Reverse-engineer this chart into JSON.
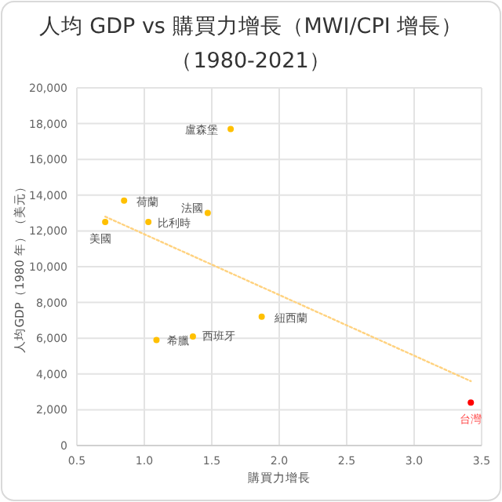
{
  "chart_data": {
    "type": "scatter",
    "title": "人均 GDP vs 購買力增長（MWI/CPI 增長）",
    "subtitle": "（1980-2021）",
    "xlabel": "購買力增長",
    "ylabel": "人均GDP（1980 年）（美元）",
    "xlim": [
      0.5,
      3.5
    ],
    "xticks": [
      {
        "value": 0.5,
        "label": "0.5"
      },
      {
        "value": 1,
        "label": "1.0"
      },
      {
        "value": 1.5,
        "label": "1.5"
      },
      {
        "value": 2,
        "label": "2.0"
      },
      {
        "value": 2.5,
        "label": "2.5"
      },
      {
        "value": 3,
        "label": "3.0"
      },
      {
        "value": 3.5,
        "label": "3.5"
      }
    ],
    "ylim": [
      0,
      20000
    ],
    "yticks": [
      {
        "value": 0,
        "label": "0"
      },
      {
        "value": 2000,
        "label": "2,000"
      },
      {
        "value": 4000,
        "label": "4,000"
      },
      {
        "value": 6000,
        "label": "6,000"
      },
      {
        "value": 8000,
        "label": "8,000"
      },
      {
        "value": 10000,
        "label": "10,000"
      },
      {
        "value": 12000,
        "label": "12,000"
      },
      {
        "value": 14000,
        "label": "14,000"
      },
      {
        "value": 16000,
        "label": "16,000"
      },
      {
        "value": 18000,
        "label": "18,000"
      },
      {
        "value": 20000,
        "label": "20,000"
      }
    ],
    "grid": true,
    "marker": "circle",
    "series": [
      {
        "color": "#ffc000",
        "x": [
          1.64,
          0.85,
          0.71,
          1.03,
          1.47,
          1.87,
          1.36,
          1.09
        ],
        "values": [
          17700,
          13700,
          12500,
          12500,
          13000,
          7200,
          6100,
          5900
        ]
      },
      {
        "color": "#ff0000",
        "x": [
          3.42
        ],
        "values": [
          2400
        ]
      },
      {
        "type": "line",
        "color": "#ffd27f",
        "line_style": "dotted",
        "marker": "none",
        "x": [
          0.71,
          3.42
        ],
        "values": [
          12800,
          3600
        ]
      }
    ],
    "annotations": [
      {
        "text": "盧森堡",
        "x": 1.64,
        "y": 17700
      },
      {
        "text": "荷蘭",
        "x": 0.85,
        "y": 13700
      },
      {
        "text": "美國",
        "x": 0.71,
        "y": 12500
      },
      {
        "text": "比利時",
        "x": 1.03,
        "y": 12500
      },
      {
        "text": "法國",
        "x": 1.47,
        "y": 13000
      },
      {
        "text": "紐西蘭",
        "x": 1.87,
        "y": 7200
      },
      {
        "text": "西班牙",
        "x": 1.36,
        "y": 6100
      },
      {
        "text": "希臘",
        "x": 1.09,
        "y": 5900
      },
      {
        "text": "台灣",
        "x": 3.42,
        "y": 2400
      }
    ]
  }
}
